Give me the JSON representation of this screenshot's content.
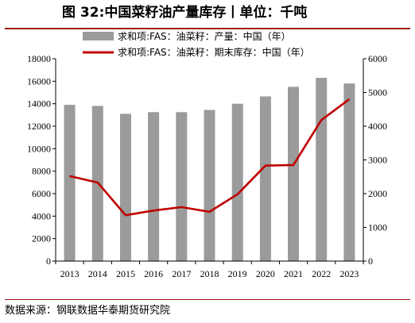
{
  "figure": {
    "title": "图 32:中国菜籽油产量库存丨单位：千吨",
    "source": "数据来源：钢联数据华泰期货研究院"
  },
  "chart_data": {
    "type": "bar",
    "categories": [
      "2013",
      "2014",
      "2015",
      "2016",
      "2017",
      "2018",
      "2019",
      "2020",
      "2021",
      "2022",
      "2023"
    ],
    "series": [
      {
        "name": "求和项:FAS：油菜籽：产量：中国（年）",
        "type": "bar",
        "axis": "left",
        "color": "#9b9b9b",
        "values": [
          13900,
          13800,
          13100,
          13250,
          13250,
          13450,
          14000,
          14650,
          15500,
          16300,
          15800
        ]
      },
      {
        "name": "求和项:FAS：油菜籽：期末库存：中国（年）",
        "type": "line",
        "axis": "right",
        "color": "#c00000",
        "values": [
          2520,
          2330,
          1360,
          1500,
          1600,
          1460,
          1980,
          2830,
          2850,
          4180,
          4800
        ]
      }
    ],
    "y_left": {
      "ylim": [
        0,
        18000
      ],
      "ticks": [
        "0",
        "2000",
        "4000",
        "6000",
        "8000",
        "10000",
        "12000",
        "14000",
        "16000",
        "18000"
      ]
    },
    "y_right": {
      "ylim": [
        0,
        6000
      ],
      "ticks": [
        "0",
        "1000",
        "2000",
        "3000",
        "4000",
        "5000",
        "6000"
      ]
    },
    "legend_position": "top",
    "grid": false
  }
}
